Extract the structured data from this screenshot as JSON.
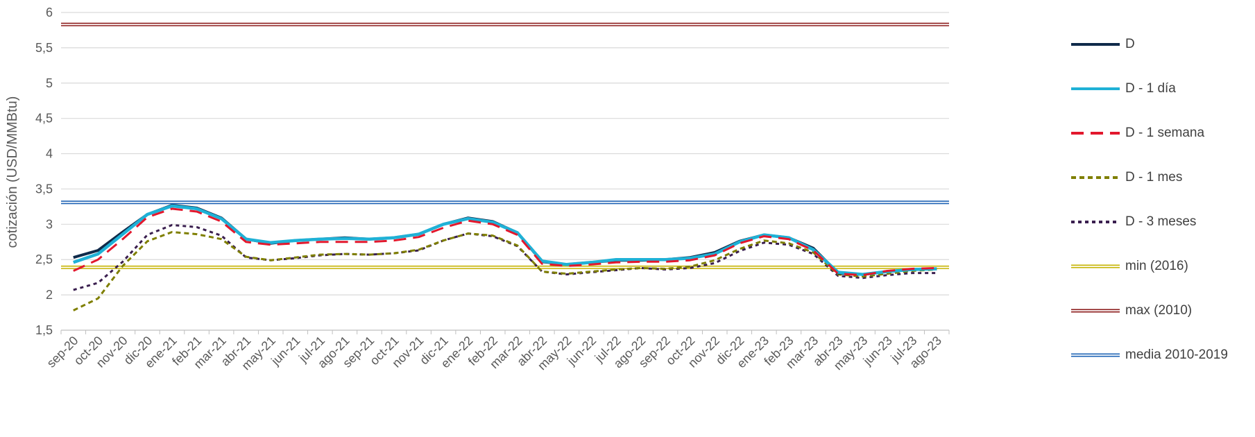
{
  "chart_data": {
    "type": "line",
    "title": "",
    "xlabel": "",
    "ylabel": "cotización (USD/MMBtu)",
    "ylim": [
      1.5,
      6
    ],
    "yticks": [
      "1,5",
      "2",
      "2,5",
      "3",
      "3,5",
      "4",
      "4,5",
      "5",
      "5,5",
      "6"
    ],
    "grid": true,
    "legend_position": "right",
    "categories": [
      "sep-20",
      "oct-20",
      "nov-20",
      "dic-20",
      "ene-21",
      "feb-21",
      "mar-21",
      "abr-21",
      "may-21",
      "jun-21",
      "jul-21",
      "ago-21",
      "sep-21",
      "oct-21",
      "nov-21",
      "dic-21",
      "ene-22",
      "feb-22",
      "mar-22",
      "abr-22",
      "may-22",
      "jun-22",
      "jul-22",
      "ago-22",
      "sep-22",
      "oct-22",
      "nov-22",
      "dic-22",
      "ene-23",
      "feb-23",
      "mar-23",
      "abr-23",
      "may-23",
      "jun-23",
      "jul-23",
      "ago-23"
    ],
    "series": [
      {
        "name": "D",
        "color": "#0f2a4a",
        "style": "solid",
        "values": [
          2.53,
          2.63,
          2.89,
          3.14,
          3.27,
          3.23,
          3.09,
          2.79,
          2.73,
          2.77,
          2.79,
          2.81,
          2.79,
          2.81,
          2.86,
          3.0,
          3.09,
          3.04,
          2.88,
          2.47,
          2.43,
          2.46,
          2.49,
          2.49,
          2.5,
          2.53,
          2.6,
          2.76,
          2.85,
          2.81,
          2.66,
          2.31,
          2.29,
          2.33,
          2.36,
          2.37
        ]
      },
      {
        "name": "D - 1 día",
        "color": "#1fb1d6",
        "style": "solid",
        "values": [
          2.46,
          2.58,
          2.86,
          3.14,
          3.26,
          3.22,
          3.08,
          2.79,
          2.74,
          2.77,
          2.79,
          2.8,
          2.79,
          2.81,
          2.86,
          3.0,
          3.08,
          3.03,
          2.88,
          2.48,
          2.43,
          2.46,
          2.5,
          2.5,
          2.5,
          2.52,
          2.58,
          2.75,
          2.85,
          2.81,
          2.64,
          2.32,
          2.29,
          2.33,
          2.36,
          2.37
        ]
      },
      {
        "name": "D - 1 semana",
        "color": "#e2182d",
        "style": "dash",
        "values": [
          2.34,
          2.5,
          2.79,
          3.1,
          3.22,
          3.18,
          3.04,
          2.75,
          2.71,
          2.73,
          2.75,
          2.75,
          2.75,
          2.77,
          2.82,
          2.95,
          3.05,
          3.0,
          2.85,
          2.44,
          2.41,
          2.43,
          2.46,
          2.47,
          2.47,
          2.49,
          2.56,
          2.73,
          2.83,
          2.79,
          2.63,
          2.3,
          2.28,
          2.34,
          2.37,
          2.38
        ]
      },
      {
        "name": "D - 1 mes",
        "color": "#7f7f00",
        "style": "short-dash",
        "values": [
          1.78,
          1.95,
          2.41,
          2.76,
          2.89,
          2.86,
          2.79,
          2.54,
          2.49,
          2.53,
          2.57,
          2.58,
          2.57,
          2.59,
          2.64,
          2.77,
          2.87,
          2.84,
          2.7,
          2.33,
          2.3,
          2.33,
          2.36,
          2.38,
          2.37,
          2.4,
          2.49,
          2.65,
          2.77,
          2.73,
          2.6,
          2.29,
          2.26,
          2.3,
          2.34,
          2.36
        ]
      },
      {
        "name": "D - 3 meses",
        "color": "#3a1f4f",
        "style": "dot",
        "values": [
          2.07,
          2.17,
          2.47,
          2.85,
          2.99,
          2.96,
          2.84,
          2.53,
          2.49,
          2.52,
          2.56,
          2.58,
          2.57,
          2.59,
          2.63,
          2.77,
          2.87,
          2.83,
          2.69,
          2.33,
          2.29,
          2.32,
          2.35,
          2.38,
          2.36,
          2.38,
          2.45,
          2.62,
          2.74,
          2.71,
          2.58,
          2.27,
          2.24,
          2.28,
          2.31,
          2.31
        ]
      },
      {
        "name": "min (2016)",
        "color": "#c5b300",
        "style": "double",
        "constant": 2.39
      },
      {
        "name": "max (2010)",
        "color": "#8b1a1a",
        "style": "double",
        "constant": 5.83
      },
      {
        "name": "media 2010-2019",
        "color": "#1e63b5",
        "style": "double",
        "constant": 3.31
      }
    ]
  }
}
